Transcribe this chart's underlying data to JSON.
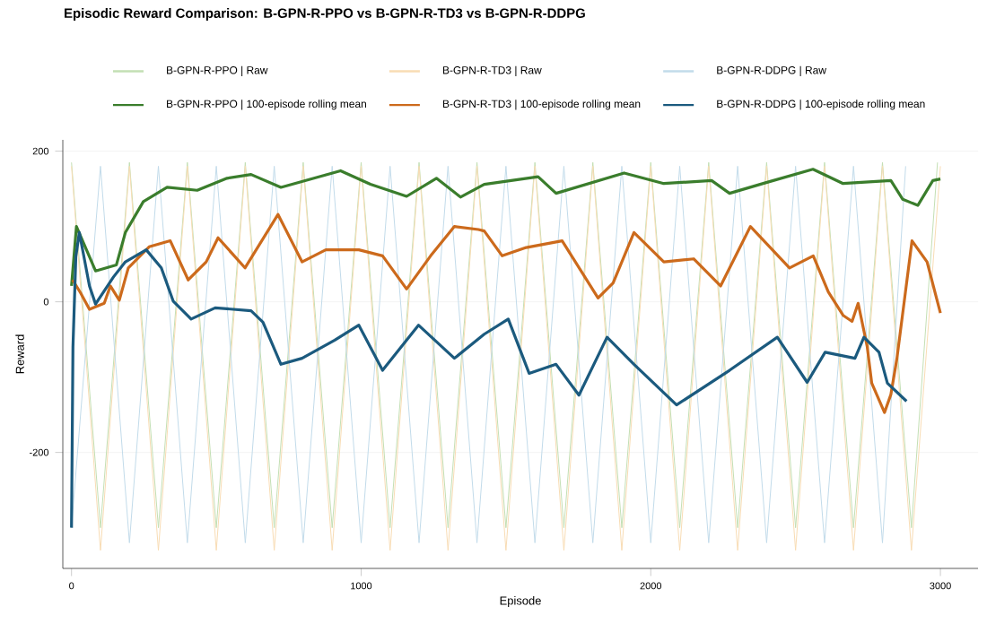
{
  "chart_data": {
    "type": "line",
    "title": "Episodic Reward Comparison: B-GPN-R-PPO vs B-GPN-R-TD3 vs B-GPN-R-DDPG",
    "xlabel": "Episode",
    "ylabel": "Reward",
    "xlim": [
      -30,
      3130
    ],
    "ylim": [
      -354,
      215
    ],
    "xticks": [
      0,
      1000,
      2000,
      3000
    ],
    "yticks": [
      -200,
      0,
      200
    ],
    "grid": "y",
    "legend": "top",
    "marker": "none",
    "line_style": "solid",
    "series": [
      {
        "name": "B-GPN-R-PPO | Raw",
        "color": "#c3dfb4",
        "x": [
          0,
          100,
          200,
          300,
          400,
          500,
          600,
          700,
          800,
          900,
          1000,
          1100,
          1200,
          1300,
          1400,
          1500,
          1600,
          1700,
          1800,
          1900,
          2000,
          2100,
          2200,
          2300,
          2400,
          2500,
          2600,
          2700,
          2800,
          2900,
          2990
        ],
        "values": [
          185,
          -300,
          185,
          -300,
          185,
          -300,
          185,
          -300,
          185,
          -300,
          185,
          -300,
          185,
          -300,
          185,
          -300,
          185,
          -300,
          185,
          -300,
          185,
          -300,
          185,
          -300,
          185,
          -300,
          185,
          -300,
          185,
          -300,
          185
        ]
      },
      {
        "name": "B-GPN-R-TD3 | Raw",
        "color": "#f8dcb4",
        "x": [
          0,
          100,
          200,
          300,
          400,
          500,
          600,
          700,
          800,
          900,
          1000,
          1100,
          1200,
          1300,
          1400,
          1500,
          1600,
          1700,
          1800,
          1900,
          2000,
          2100,
          2200,
          2300,
          2400,
          2500,
          2600,
          2700,
          2800,
          2900,
          3000
        ],
        "values": [
          180,
          -330,
          180,
          -330,
          180,
          -330,
          180,
          -330,
          180,
          -330,
          180,
          -330,
          180,
          -330,
          180,
          -330,
          180,
          -330,
          180,
          -330,
          180,
          -330,
          180,
          -330,
          180,
          -330,
          180,
          -330,
          180,
          -330,
          180
        ]
      },
      {
        "name": "B-GPN-R-DDPG | Raw",
        "color": "#c2dbea",
        "x": [
          0,
          100,
          200,
          300,
          400,
          500,
          600,
          700,
          800,
          900,
          1000,
          1100,
          1200,
          1300,
          1400,
          1500,
          1600,
          1700,
          1800,
          1900,
          2000,
          2100,
          2200,
          2300,
          2400,
          2500,
          2600,
          2700,
          2800,
          2880
        ],
        "values": [
          -300,
          180,
          -320,
          180,
          -320,
          180,
          -320,
          180,
          -320,
          180,
          -320,
          180,
          -320,
          180,
          -320,
          180,
          -320,
          180,
          -320,
          180,
          -320,
          180,
          -320,
          180,
          -320,
          180,
          -320,
          180,
          -320,
          180
        ]
      },
      {
        "name": "B-GPN-R-PPO | 100-episode rolling mean",
        "color": "#3a7d2c",
        "x": [
          0,
          17,
          83,
          155,
          186,
          248,
          330,
          434,
          537,
          620,
          723,
          929,
          1032,
          1157,
          1260,
          1343,
          1425,
          1611,
          1673,
          1908,
          2045,
          2210,
          2272,
          2396,
          2560,
          2664,
          2829,
          2870,
          2922,
          2974,
          3000
        ],
        "values": [
          21,
          100,
          41,
          49,
          92,
          133,
          152,
          148,
          164,
          169,
          152,
          174,
          156,
          140,
          164,
          139,
          156,
          166,
          144,
          171,
          157,
          161,
          144,
          158,
          176,
          157,
          161,
          136,
          128,
          161,
          163
        ]
      },
      {
        "name": "B-GPN-R-TD3 | 100-episode rolling mean",
        "color": "#cc6a1c",
        "x": [
          4,
          31,
          62,
          113,
          134,
          165,
          196,
          268,
          341,
          403,
          465,
          506,
          599,
          713,
          796,
          878,
          992,
          1074,
          1157,
          1240,
          1322,
          1405,
          1425,
          1487,
          1570,
          1694,
          1818,
          1870,
          1942,
          2045,
          2148,
          2241,
          2344,
          2479,
          2561,
          2613,
          2664,
          2695,
          2716,
          2747,
          2763,
          2807,
          2829,
          2850,
          2902,
          2954,
          3000
        ],
        "values": [
          29,
          12,
          -10,
          -2,
          21,
          2,
          45,
          73,
          81,
          29,
          53,
          85,
          45,
          116,
          53,
          69,
          69,
          61,
          17,
          61,
          100,
          96,
          94,
          61,
          72,
          81,
          5,
          25,
          92,
          53,
          57,
          21,
          100,
          45,
          61,
          13,
          -18,
          -26,
          -2,
          -59,
          -108,
          -147,
          -123,
          -75,
          81,
          53,
          -15
        ]
      },
      {
        "name": "B-GPN-R-DDPG | 100-episode rolling mean",
        "color": "#1b5a7e",
        "x": [
          0,
          5,
          15,
          27,
          62,
          83,
          145,
          186,
          258,
          310,
          351,
          413,
          496,
          620,
          661,
          723,
          796,
          909,
          992,
          1074,
          1198,
          1322,
          1425,
          1508,
          1580,
          1673,
          1752,
          1849,
          1942,
          2089,
          2272,
          2437,
          2540,
          2602,
          2705,
          2736,
          2788,
          2817,
          2883
        ],
        "values": [
          -300,
          -60,
          60,
          92,
          21,
          -3,
          33,
          53,
          69,
          45,
          1,
          -23,
          -8,
          -12,
          -27,
          -83,
          -75,
          -51,
          -31,
          -91,
          -31,
          -75,
          -43,
          -23,
          -95,
          -83,
          -124,
          -47,
          -83,
          -137,
          -91,
          -47,
          -107,
          -67,
          -75,
          -47,
          -67,
          -108,
          -132
        ]
      }
    ]
  }
}
